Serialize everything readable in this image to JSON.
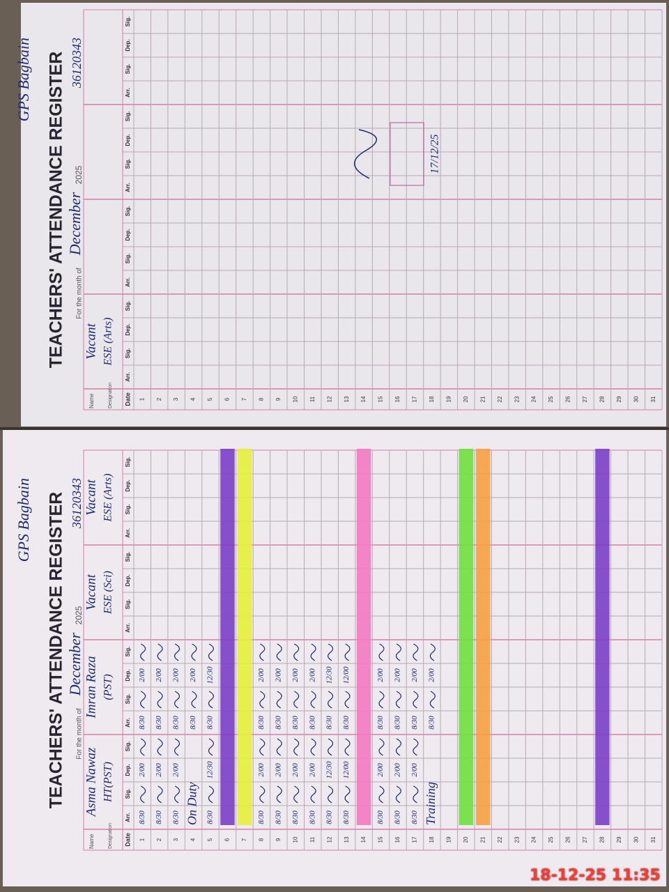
{
  "timestamp": "18-12-25 11:35",
  "pages": [
    {
      "school": "GPS Bagbain",
      "title": "TEACHERS' ATTENDANCE REGISTER",
      "month_label": "For the month of",
      "month": "December",
      "year": "2025",
      "code": "36120343",
      "name_label": "Name",
      "designation_label": "Designation",
      "columns": [
        "Date",
        "Arr.",
        "Sig.",
        "Dep.",
        "Sig."
      ],
      "dates": [
        1,
        2,
        3,
        4,
        5,
        6,
        7,
        8,
        9,
        10,
        11,
        12,
        13,
        14,
        15,
        16,
        17,
        18,
        19,
        20,
        21,
        22,
        23,
        24,
        25,
        26,
        27,
        28,
        29,
        30,
        31
      ],
      "highlights": [
        null,
        null,
        null,
        null,
        null,
        "#7a3fc8",
        "#e4f03a",
        null,
        null,
        null,
        null,
        null,
        null,
        "#f47ac0",
        null,
        null,
        null,
        null,
        null,
        "#6fe03c",
        "#f7a040",
        null,
        null,
        null,
        null,
        null,
        null,
        "#7a3fc8",
        null,
        null,
        null
      ],
      "teachers": [
        {
          "name": "Asma Nawaz",
          "designation": "HT(PST)",
          "arr": [
            "8/30",
            "8/30",
            "8/30",
            "On Duty",
            "8/30",
            null,
            null,
            "8/30",
            "8/30",
            "8/30",
            "8/30",
            "8/30",
            "8/30",
            null,
            "8/30",
            "8/30",
            "8/30",
            "Training",
            null,
            null,
            null,
            null,
            null,
            null,
            null,
            null,
            null,
            null,
            null,
            null,
            null
          ],
          "dep": [
            "2/00",
            "2/00",
            "2/00",
            null,
            "12/30",
            null,
            null,
            "2/00",
            "2/00",
            "2/00",
            "2/00",
            "12/30",
            "12/00",
            null,
            "2/00",
            "2/00",
            "2/00",
            null,
            null,
            null,
            null,
            null,
            null,
            null,
            null,
            null,
            null,
            null,
            null,
            null,
            null
          ]
        },
        {
          "name": "Imran Raza",
          "designation": "(PST)",
          "arr": [
            "8/30",
            "8/30",
            "8/30",
            "8/30",
            "8/30",
            null,
            null,
            "8/30",
            "8/30",
            "8/30",
            "8/30",
            "8/30",
            "8/30",
            null,
            "8/30",
            "8/30",
            "8/30",
            "8/30",
            null,
            null,
            null,
            null,
            null,
            null,
            null,
            null,
            null,
            null,
            null,
            null,
            null
          ],
          "dep": [
            "2/00",
            "2/00",
            "2/00",
            "2/00",
            "12/30",
            null,
            null,
            "2/00",
            "2/00",
            "2/00",
            "2/00",
            "12/30",
            "12/00",
            null,
            "2/00",
            "2/00",
            "2/00",
            "2/00",
            null,
            null,
            null,
            null,
            null,
            null,
            null,
            null,
            null,
            null,
            null,
            null,
            null
          ]
        },
        {
          "name": "Vacant",
          "designation": "ESE (Sci)"
        },
        {
          "name": "Vacant",
          "designation": "ESE (Arts)"
        }
      ]
    },
    {
      "school": "GPS Bagbain",
      "title": "TEACHERS' ATTENDANCE REGISTER",
      "month_label": "For the month of",
      "month": "December",
      "year": "2025",
      "code": "36120343",
      "name_label": "Name",
      "designation_label": "Designation",
      "columns": [
        "Date",
        "Arr.",
        "Sig.",
        "Dep.",
        "Sig."
      ],
      "dates": [
        1,
        2,
        3,
        4,
        5,
        6,
        7,
        8,
        9,
        10,
        11,
        12,
        13,
        14,
        15,
        16,
        17,
        18,
        19,
        20,
        21,
        22,
        23,
        24,
        25,
        26,
        27,
        28,
        29,
        30,
        31
      ],
      "teachers": [
        {
          "name": "Vacant",
          "designation": "ESE (Arts)"
        }
      ],
      "signature_date": "17/12/25"
    }
  ]
}
